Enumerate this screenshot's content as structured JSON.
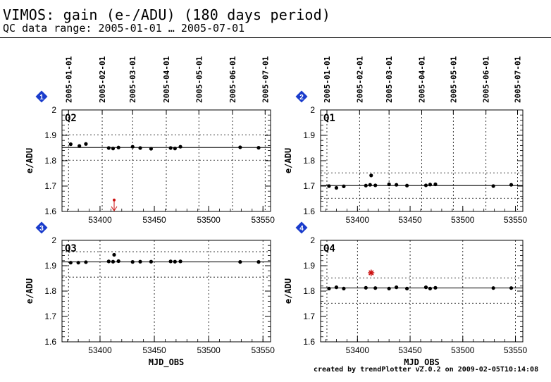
{
  "header": {
    "title": "VIMOS: gain (e-/ADU) (180 days period)",
    "subtitle": "QC data range: 2005-01-01 … 2005-07-01"
  },
  "footer": {
    "credit": "created by trendPlotter v2.0.2 on 2009-02-05T10:14:08"
  },
  "colors": {
    "badge": "#1a3ccc",
    "outlier": "#cc1111",
    "data": "#000000"
  },
  "chart_data": [
    {
      "type": "scatter",
      "badge": "1",
      "panel_label": "Q2",
      "ylabel": "e/ADU",
      "xlabel": "",
      "xlim": [
        53365,
        53557
      ],
      "ylim": [
        1.6,
        2.0
      ],
      "x_ticks": [
        53400,
        53450,
        53500,
        53550
      ],
      "y_ticks": [
        1.6,
        1.7,
        1.8,
        1.9,
        2.0
      ],
      "date_ticks": [
        "2005-01-01",
        "2005-02-01",
        "2005-03-01",
        "2005-04-01",
        "2005-05-01",
        "2005-06-01",
        "2005-07-01"
      ],
      "date_tick_mjd": [
        53371,
        53402,
        53430,
        53461,
        53491,
        53522,
        53552
      ],
      "mean_line": 1.852,
      "band_lines": [
        1.802,
        1.902
      ],
      "points": [
        [
          53373,
          1.865
        ],
        [
          53381,
          1.858
        ],
        [
          53387,
          1.866
        ],
        [
          53408,
          1.85
        ],
        [
          53412,
          1.848
        ],
        [
          53417,
          1.852
        ],
        [
          53430,
          1.855
        ],
        [
          53437,
          1.85
        ],
        [
          53447,
          1.847
        ],
        [
          53465,
          1.85
        ],
        [
          53469,
          1.848
        ],
        [
          53474,
          1.855
        ],
        [
          53529,
          1.853
        ],
        [
          53546,
          1.851
        ]
      ],
      "outliers": [
        {
          "x": 53413,
          "y": 1.645,
          "kind": "arrow-down"
        }
      ]
    },
    {
      "type": "scatter",
      "badge": "2",
      "panel_label": "Q1",
      "ylabel": "e/ADU",
      "xlabel": "",
      "xlim": [
        53365,
        53557
      ],
      "ylim": [
        1.6,
        2.0
      ],
      "x_ticks": [
        53400,
        53450,
        53500,
        53550
      ],
      "y_ticks": [
        1.6,
        1.7,
        1.8,
        1.9,
        2.0
      ],
      "date_ticks": [
        "2005-01-01",
        "2005-02-01",
        "2005-03-01",
        "2005-04-01",
        "2005-05-01",
        "2005-06-01",
        "2005-07-01"
      ],
      "date_tick_mjd": [
        53371,
        53402,
        53430,
        53461,
        53491,
        53522,
        53552
      ],
      "mean_line": 1.702,
      "band_lines": [
        1.652,
        1.752
      ],
      "points": [
        [
          53373,
          1.7
        ],
        [
          53380,
          1.693
        ],
        [
          53387,
          1.699
        ],
        [
          53408,
          1.702
        ],
        [
          53412,
          1.705
        ],
        [
          53413,
          1.742
        ],
        [
          53417,
          1.703
        ],
        [
          53430,
          1.707
        ],
        [
          53437,
          1.705
        ],
        [
          53447,
          1.702
        ],
        [
          53465,
          1.703
        ],
        [
          53469,
          1.706
        ],
        [
          53474,
          1.707
        ],
        [
          53529,
          1.7
        ],
        [
          53546,
          1.705
        ]
      ],
      "outliers": []
    },
    {
      "type": "scatter",
      "badge": "3",
      "panel_label": "Q3",
      "ylabel": "e/ADU",
      "xlabel": "MJD_OBS",
      "xlim": [
        53365,
        53557
      ],
      "ylim": [
        1.6,
        2.0
      ],
      "x_ticks": [
        53400,
        53450,
        53500,
        53550
      ],
      "y_ticks": [
        1.6,
        1.7,
        1.8,
        1.9,
        2.0
      ],
      "mean_line": 1.915,
      "band_lines": [
        1.855,
        1.955
      ],
      "points": [
        [
          53373,
          1.912
        ],
        [
          53380,
          1.912
        ],
        [
          53387,
          1.914
        ],
        [
          53408,
          1.917
        ],
        [
          53412,
          1.916
        ],
        [
          53413,
          1.943
        ],
        [
          53417,
          1.918
        ],
        [
          53430,
          1.915
        ],
        [
          53437,
          1.916
        ],
        [
          53447,
          1.916
        ],
        [
          53465,
          1.917
        ],
        [
          53469,
          1.916
        ],
        [
          53474,
          1.917
        ],
        [
          53529,
          1.915
        ],
        [
          53546,
          1.915
        ]
      ],
      "outliers": []
    },
    {
      "type": "scatter",
      "badge": "4",
      "panel_label": "Q4",
      "ylabel": "e/ADU",
      "xlabel": "MJD_OBS",
      "xlim": [
        53365,
        53557
      ],
      "ylim": [
        1.6,
        2.0
      ],
      "x_ticks": [
        53400,
        53450,
        53500,
        53550
      ],
      "y_ticks": [
        1.6,
        1.7,
        1.8,
        1.9,
        2.0
      ],
      "mean_line": 1.812,
      "band_lines": [
        1.752,
        1.852
      ],
      "points": [
        [
          53373,
          1.81
        ],
        [
          53380,
          1.815
        ],
        [
          53387,
          1.81
        ],
        [
          53408,
          1.813
        ],
        [
          53417,
          1.812
        ],
        [
          53430,
          1.81
        ],
        [
          53437,
          1.815
        ],
        [
          53447,
          1.81
        ],
        [
          53465,
          1.815
        ],
        [
          53469,
          1.81
        ],
        [
          53474,
          1.813
        ],
        [
          53529,
          1.812
        ],
        [
          53546,
          1.812
        ]
      ],
      "outliers": [
        {
          "x": 53413,
          "y": 1.872,
          "kind": "star"
        }
      ]
    }
  ]
}
